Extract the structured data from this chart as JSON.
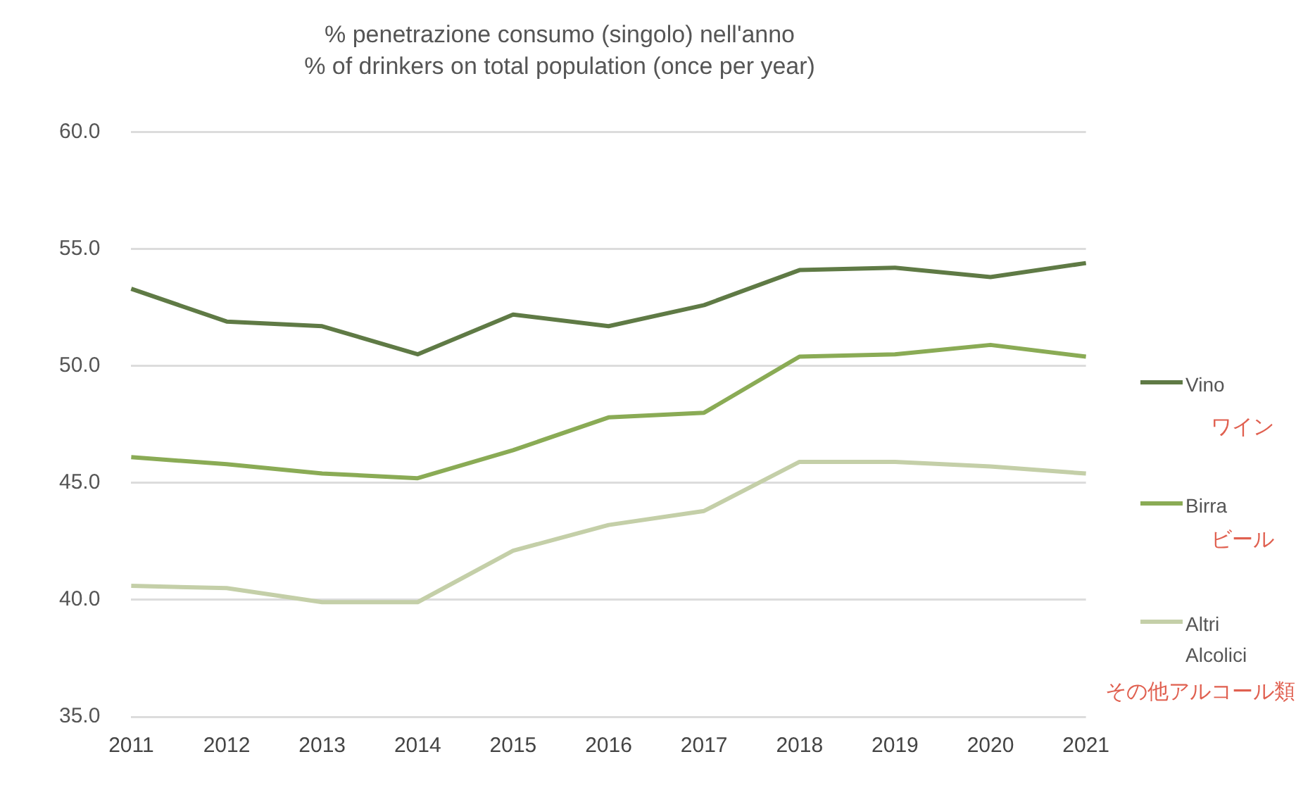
{
  "chart_data": {
    "type": "line",
    "title": "% penetrazione consumo (singolo) nell'anno",
    "subtitle": "% of drinkers on total population (once per year)",
    "categories": [
      "2011",
      "2012",
      "2013",
      "2014",
      "2015",
      "2016",
      "2017",
      "2018",
      "2019",
      "2020",
      "2021"
    ],
    "series": [
      {
        "name": "Vino",
        "color": "#5f7a45",
        "values": [
          53.3,
          51.9,
          51.7,
          50.5,
          52.2,
          51.7,
          52.6,
          54.1,
          54.2,
          53.8,
          54.4
        ]
      },
      {
        "name": "Birra",
        "color": "#8aab55",
        "values": [
          46.1,
          45.8,
          45.4,
          45.2,
          46.4,
          47.8,
          48.0,
          50.4,
          50.5,
          50.9,
          50.4
        ]
      },
      {
        "name": "Altri Alcolici",
        "color": "#c4cfa8",
        "values": [
          40.6,
          40.5,
          39.9,
          39.9,
          42.1,
          43.2,
          43.8,
          45.9,
          45.9,
          45.7,
          45.4
        ]
      }
    ],
    "ylim": [
      35,
      60
    ],
    "yticks": [
      {
        "value": 35,
        "label": "35.0"
      },
      {
        "value": 40,
        "label": "40.0"
      },
      {
        "value": 45,
        "label": "45.0"
      },
      {
        "value": 50,
        "label": "50.0"
      },
      {
        "value": 55,
        "label": "55.0"
      },
      {
        "value": 60,
        "label": "60.0"
      }
    ],
    "grid": "y",
    "legend": "right",
    "marker": "none",
    "line_style": "solid",
    "annotations": [
      "ワイン",
      "ビール",
      "その他アルコール類"
    ]
  }
}
